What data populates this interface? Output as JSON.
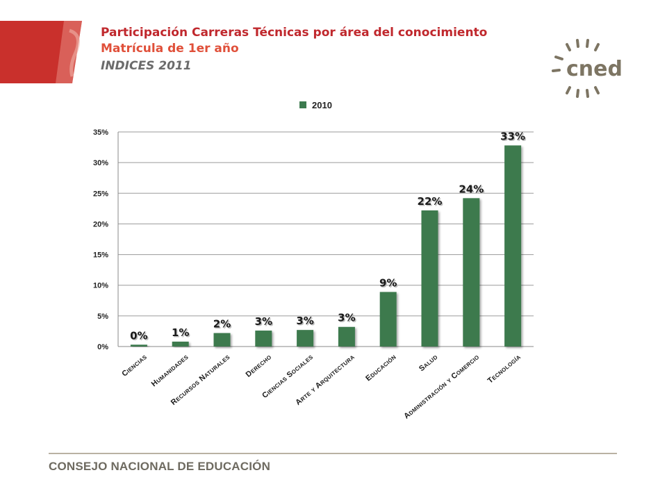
{
  "header": {
    "title": "Participación Carreras  Técnicas por área del conocimiento",
    "subtitle": "Matrícula de 1er año",
    "subtitle2": "INDICES 2011"
  },
  "logo": {
    "text": "cned"
  },
  "footer": {
    "text": "CONSEJO NACIONAL DE EDUCACIÓN"
  },
  "colors": {
    "bar": "#3c7a4e",
    "title": "#c0282d",
    "subtitle": "#e0503a",
    "brand_red": "#c9302c",
    "logo_gray": "#7d7563"
  },
  "chart_data": {
    "type": "bar",
    "legend": {
      "position": "top",
      "entries": [
        "2010"
      ]
    },
    "categories": [
      "Ciencias",
      "Humanidades",
      "Recursos Naturales",
      "Derecho",
      "Ciencias Sociales",
      "Arte y Arquitectura",
      "Educación",
      "Salud",
      "Administración y Comercio",
      "Tecnología"
    ],
    "series": [
      {
        "name": "2010",
        "values": [
          0.3,
          0.8,
          2.2,
          2.6,
          2.7,
          3.2,
          8.9,
          22.2,
          24.2,
          32.8
        ],
        "labels": [
          "0%",
          "1%",
          "2%",
          "3%",
          "3%",
          "3%",
          "9%",
          "22%",
          "24%",
          "33%"
        ]
      }
    ],
    "ylim": [
      0,
      35
    ],
    "yticks": [
      "0%",
      "5%",
      "10%",
      "15%",
      "20%",
      "25%",
      "30%",
      "35%"
    ],
    "grid": true
  }
}
